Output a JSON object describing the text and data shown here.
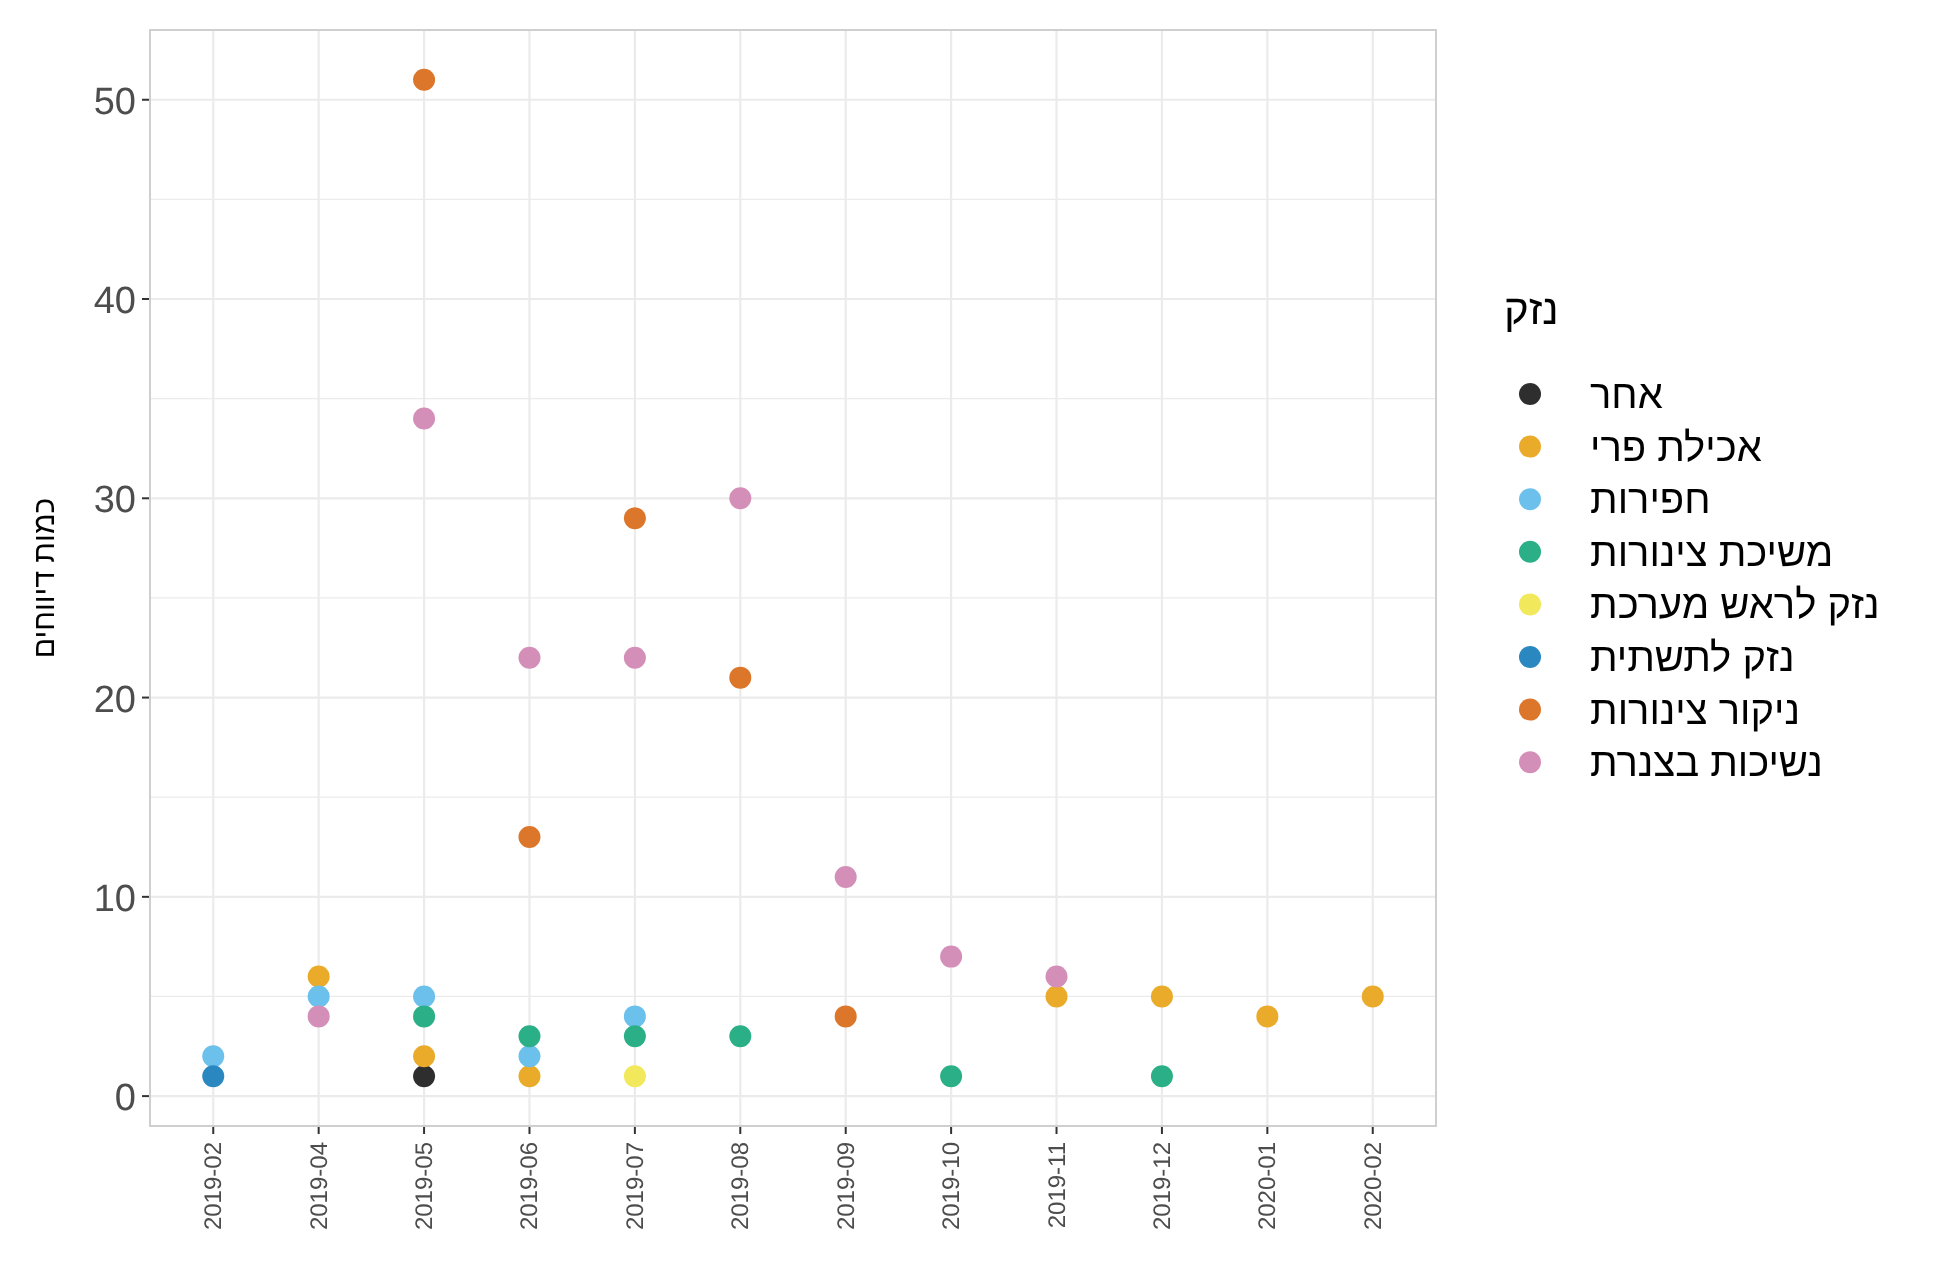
{
  "chart_data": {
    "type": "scatter",
    "ylabel": "כמות דיווחים",
    "legend_title": "נזק",
    "legend": "right",
    "grid": true,
    "marker": "circle",
    "categories": [
      "2019-02",
      "2019-04",
      "2019-05",
      "2019-06",
      "2019-07",
      "2019-08",
      "2019-09",
      "2019-10",
      "2019-11",
      "2019-12",
      "2020-01",
      "2020-02"
    ],
    "ylim": [
      -1.5,
      53.5
    ],
    "yticks": [
      0,
      {
        "value": 5,
        "label": null
      },
      10,
      {
        "value": 15,
        "label": null
      },
      20,
      {
        "value": 25,
        "label": null
      },
      30,
      {
        "value": 35,
        "label": null
      },
      40,
      {
        "value": 45,
        "label": null
      },
      50
    ],
    "series": [
      {
        "name": "אחר",
        "color": "#2e2e2e",
        "values": [
          null,
          null,
          1,
          null,
          null,
          null,
          null,
          null,
          null,
          null,
          null,
          null
        ]
      },
      {
        "name": "אכילת פרי",
        "color": "#eaab2a",
        "values": [
          null,
          6,
          2,
          1,
          null,
          null,
          null,
          null,
          5,
          5,
          4,
          5
        ]
      },
      {
        "name": "חפירות",
        "color": "#6cc0ec",
        "values": [
          2,
          5,
          5,
          2,
          4,
          null,
          null,
          null,
          null,
          null,
          null,
          null
        ]
      },
      {
        "name": "משיכת צינורות",
        "color": "#2aaf86",
        "values": [
          null,
          null,
          4,
          3,
          3,
          3,
          null,
          1,
          null,
          1,
          null,
          null
        ]
      },
      {
        "name": "נזק לראש מערכת",
        "color": "#f2e85c",
        "values": [
          null,
          null,
          null,
          null,
          1,
          null,
          null,
          null,
          null,
          null,
          null,
          null
        ]
      },
      {
        "name": "נזק לתשתית",
        "color": "#2a87c0",
        "values": [
          1,
          null,
          null,
          null,
          null,
          null,
          null,
          null,
          null,
          null,
          null,
          null
        ]
      },
      {
        "name": "ניקור צינורות",
        "color": "#dc762a",
        "values": [
          null,
          null,
          51,
          13,
          29,
          21,
          4,
          null,
          null,
          null,
          null,
          null
        ]
      },
      {
        "name": "נשיכות בצנרת",
        "color": "#d48fb8",
        "values": [
          null,
          4,
          34,
          22,
          22,
          30,
          11,
          7,
          6,
          null,
          null,
          null
        ]
      }
    ]
  }
}
